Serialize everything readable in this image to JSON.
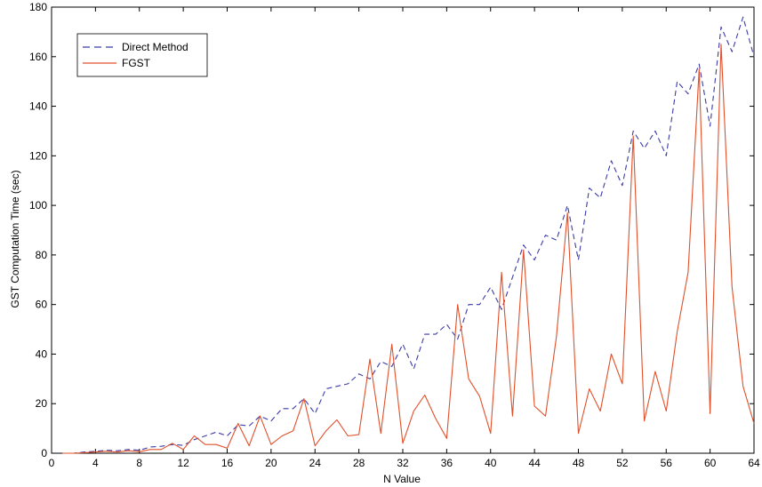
{
  "chart_data": {
    "type": "line",
    "xlabel": "N Value",
    "ylabel": "GST Computation Time (sec)",
    "xlim": [
      0,
      64
    ],
    "ylim": [
      0,
      180
    ],
    "xticks": [
      0,
      4,
      8,
      12,
      16,
      20,
      24,
      28,
      32,
      36,
      40,
      44,
      48,
      52,
      56,
      60,
      64
    ],
    "yticks": [
      0,
      20,
      40,
      60,
      80,
      100,
      120,
      140,
      160,
      180
    ],
    "grid": false,
    "legend_position": "top-left",
    "series": [
      {
        "name": "Direct Method",
        "style": "dashed",
        "color": "#3b3ba8",
        "x": [
          1,
          2,
          3,
          4,
          5,
          6,
          7,
          8,
          9,
          10,
          11,
          12,
          13,
          14,
          15,
          16,
          17,
          18,
          19,
          20,
          21,
          22,
          23,
          24,
          25,
          26,
          27,
          28,
          29,
          30,
          31,
          32,
          33,
          34,
          35,
          36,
          37,
          38,
          39,
          40,
          41,
          42,
          43,
          44,
          45,
          46,
          47,
          48,
          49,
          50,
          51,
          52,
          53,
          54,
          55,
          56,
          57,
          58,
          59,
          60,
          61,
          62,
          63,
          64
        ],
        "values": [
          0,
          0,
          0.5,
          0.8,
          1.2,
          1,
          1.5,
          1.2,
          2.5,
          2.8,
          3.5,
          3.2,
          5.5,
          7,
          8.5,
          7,
          11.5,
          11,
          15,
          13,
          18,
          18,
          22,
          16,
          26,
          27,
          28,
          32,
          30,
          37,
          35,
          44,
          34,
          48,
          48,
          52,
          46,
          60,
          60,
          67,
          58,
          71,
          84,
          78,
          88,
          86,
          100,
          78,
          107,
          103,
          118,
          108,
          130,
          123,
          130,
          120,
          150,
          145,
          157,
          132,
          172,
          162,
          176,
          160
        ]
      },
      {
        "name": "FGST",
        "style": "solid",
        "color": "#e0502a",
        "x": [
          1,
          2,
          3,
          4,
          5,
          6,
          7,
          8,
          9,
          10,
          11,
          12,
          13,
          14,
          15,
          16,
          17,
          18,
          19,
          20,
          21,
          22,
          23,
          24,
          25,
          26,
          27,
          28,
          29,
          30,
          31,
          32,
          33,
          34,
          35,
          36,
          37,
          38,
          39,
          40,
          41,
          42,
          43,
          44,
          45,
          46,
          47,
          48,
          49,
          50,
          51,
          52,
          53,
          54,
          55,
          56,
          57,
          58,
          59,
          60,
          61,
          62,
          63,
          64
        ],
        "values": [
          0,
          0,
          0.2,
          0.5,
          0.8,
          0.5,
          1,
          0.6,
          1.5,
          1.5,
          4,
          1.5,
          7,
          3.5,
          3.5,
          2,
          12,
          3,
          15,
          3.5,
          7,
          9,
          22,
          3,
          9,
          13.5,
          7,
          7.5,
          38,
          8,
          44,
          4,
          17,
          23.5,
          14,
          6,
          60,
          30,
          23,
          8,
          73,
          15,
          82,
          19,
          15,
          47,
          97,
          8,
          26,
          17,
          40,
          28,
          128,
          13,
          33,
          17,
          49,
          73,
          155,
          16,
          165,
          67,
          27,
          12
        ]
      }
    ]
  }
}
